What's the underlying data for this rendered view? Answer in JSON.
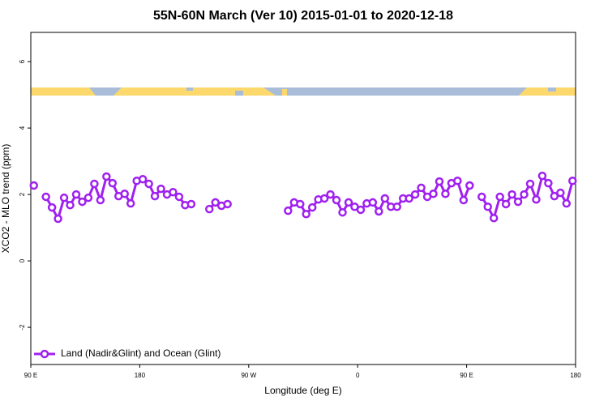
{
  "chart_data": {
    "type": "line",
    "title": "55N-60N March (Ver 10)   2015-01-01 to 2020-12-18",
    "xlabel": "Longitude (deg E)",
    "ylabel": "XCO2 - MLO trend (ppm)",
    "x": [
      92.5,
      97.5,
      102.5,
      107.5,
      112.5,
      117.5,
      122.5,
      127.5,
      132.5,
      137.5,
      142.5,
      147.5,
      152.5,
      157.5,
      162.5,
      167.5,
      172.5,
      177.5,
      182.5,
      187.5,
      192.5,
      197.5,
      202.5,
      207.5,
      212.5,
      217.5,
      222.5,
      227.5,
      232.5,
      237.5,
      242.5,
      247.5,
      252.5,
      257.5,
      262.5,
      267.5,
      272.5,
      277.5,
      282.5,
      287.5,
      292.5,
      297.5,
      302.5,
      307.5,
      312.5,
      317.5,
      322.5,
      327.5,
      332.5,
      337.5,
      342.5,
      347.5,
      352.5,
      357.5,
      362.5,
      367.5,
      372.5,
      377.5,
      382.5,
      387.5,
      392.5,
      397.5,
      402.5,
      407.5,
      412.5,
      417.5,
      422.5,
      427.5,
      432.5,
      437.5,
      442.5,
      447.5,
      452.5,
      457.5,
      462.5,
      467.5,
      472.5,
      477.5,
      482.5,
      487.5,
      492.5,
      497.5,
      502.5,
      507.5,
      512.5,
      517.5,
      522.5,
      527.5,
      532.5,
      537.5
    ],
    "series": [
      {
        "name": "Land (Nadir&Glint) and Ocean (Glint)",
        "color": "#a020f0",
        "values": [
          2.27,
          null,
          1.93,
          1.61,
          1.27,
          1.9,
          1.68,
          2.0,
          1.78,
          1.9,
          2.32,
          1.83,
          2.54,
          2.34,
          1.95,
          2.02,
          1.73,
          2.41,
          2.46,
          2.32,
          1.95,
          2.17,
          2.0,
          2.07,
          1.93,
          1.68,
          1.71,
          null,
          null,
          1.56,
          1.76,
          1.66,
          1.71,
          null,
          null,
          null,
          null,
          null,
          null,
          null,
          null,
          null,
          1.51,
          1.76,
          1.71,
          1.41,
          1.61,
          1.85,
          1.88,
          2.0,
          1.83,
          1.46,
          1.76,
          1.63,
          1.54,
          1.73,
          1.76,
          1.49,
          1.88,
          1.63,
          1.63,
          1.88,
          1.88,
          2.0,
          2.2,
          1.93,
          2.02,
          2.39,
          2.02,
          2.34,
          2.41,
          1.83,
          2.27,
          null,
          1.93,
          1.63,
          1.29,
          1.93,
          1.71,
          2.0,
          1.78,
          2.0,
          2.32,
          1.85,
          2.56,
          2.34,
          1.95,
          2.05,
          1.73,
          2.41
        ]
      }
    ],
    "xlim": [
      90,
      540
    ],
    "xticks": [
      {
        "value": 90,
        "label": "90 E"
      },
      180,
      {
        "value": 270,
        "label": "90 W"
      },
      {
        "value": 360,
        "label": "0"
      },
      {
        "value": 450,
        "label": "90 E"
      },
      {
        "value": 540,
        "label": "180"
      }
    ],
    "ylim": [
      -3.12,
      6.88
    ],
    "yticks": [
      -2,
      0,
      2,
      4,
      6
    ],
    "legend": "bottomleft"
  }
}
